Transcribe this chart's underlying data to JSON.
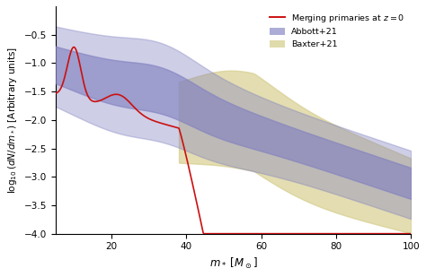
{
  "title": "",
  "xlabel": "$m_*\\ [M_\\odot]$",
  "ylabel": "$\\log_{10}(dN/dm_*)\\ [\\mathrm{Arbitrary\\ units}]$",
  "xlim": [
    5,
    100
  ],
  "ylim": [
    -4.0,
    0.0
  ],
  "yticks": [
    -4.0,
    -3.5,
    -3.0,
    -2.5,
    -2.0,
    -1.5,
    -1.0,
    -0.5
  ],
  "xticks": [
    20,
    40,
    60,
    80,
    100
  ],
  "background_color": "#ffffff",
  "abbott_color": "#8080c0",
  "baxter_color": "#d4cc88",
  "red_line_color": "#cc1010",
  "legend_labels": [
    "Merging primaries at $z=0$",
    "Abbott+21",
    "Baxter+21"
  ]
}
